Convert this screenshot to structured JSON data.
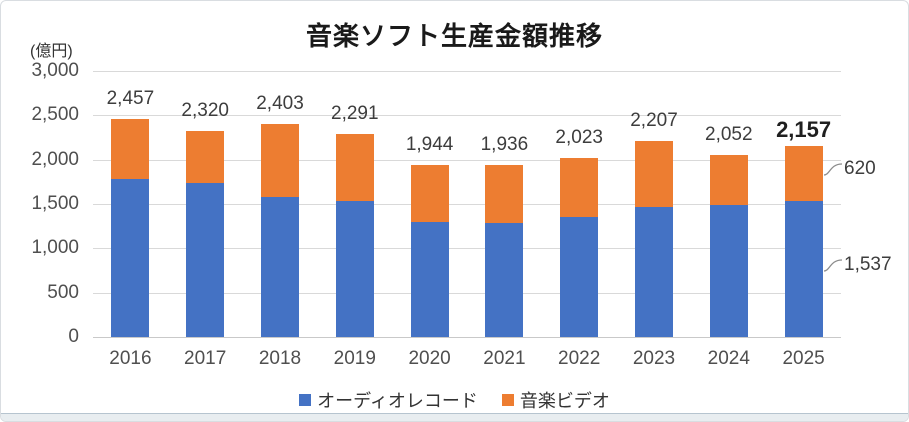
{
  "chart": {
    "title": "音楽ソフト生産金額推移",
    "unit_label": "(億円)",
    "chart_data": {
      "type": "bar",
      "stacked": true,
      "title": "音楽ソフト生産金額推移",
      "ylabel": "(億円)",
      "ylim": [
        0,
        3000
      ],
      "y_tick_step": 500,
      "y_tick_labels": [
        "0",
        "500",
        "1,000",
        "1,500",
        "2,000",
        "2,500",
        "3,000"
      ],
      "grid": true,
      "legend_position": "bottom",
      "categories": [
        "2016",
        "2017",
        "2018",
        "2019",
        "2020",
        "2021",
        "2022",
        "2023",
        "2024",
        "2025"
      ],
      "series": [
        {
          "key": "audio",
          "name": "オーディオレコード",
          "color": "#4472C4",
          "values": [
            1777,
            1734,
            1576,
            1531,
            1299,
            1285,
            1355,
            1465,
            1494,
            1537
          ]
        },
        {
          "key": "video",
          "name": "音楽ビデオ",
          "color": "#ED7D31",
          "values": [
            680,
            586,
            827,
            760,
            645,
            651,
            668,
            742,
            558,
            620
          ]
        }
      ],
      "total_labels": [
        "2,457",
        "2,320",
        "2,403",
        "2,291",
        "1,944",
        "1,936",
        "2,023",
        "2,207",
        "2,052",
        "2,157"
      ],
      "emphasized_total_index": 9,
      "annotations": [
        {
          "text": "620",
          "category": "2025",
          "series_index": 1
        },
        {
          "text": "1,537",
          "category": "2025",
          "series_index": 0
        }
      ]
    },
    "colors": {
      "audio": "#4472C4",
      "video": "#ED7D31",
      "gridline": "#D9D9D9",
      "axis_text": "#4f4f4f",
      "label_text": "#3d3d3d"
    }
  }
}
